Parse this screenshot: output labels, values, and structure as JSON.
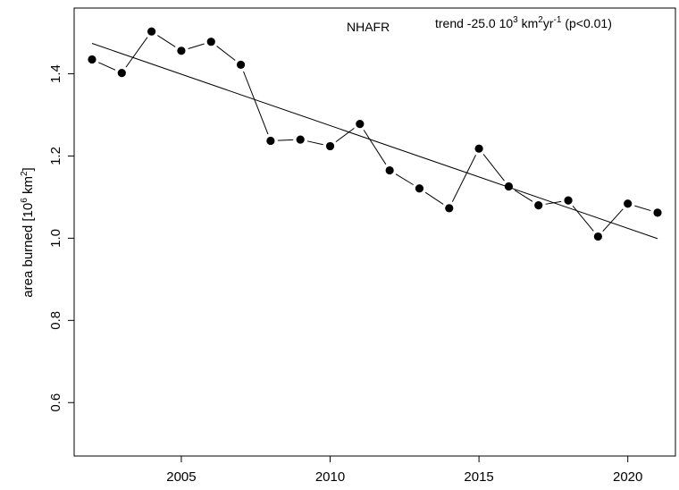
{
  "chart_data": {
    "type": "scatter",
    "title": "",
    "xlabel": "",
    "ylabel": {
      "text": "area burned [10",
      "sup1": "6",
      "text2": " km",
      "sup2": "2",
      "text3": "]"
    },
    "region_label": "NHAFR",
    "trend_label": {
      "p1": "trend -25.0 10",
      "s1": "3",
      "p2": " km",
      "s2": "2",
      "p3": "yr",
      "s3": "-1",
      "p4": " (p<0.01)"
    },
    "xlim": [
      2001.4,
      2021.6
    ],
    "ylim": [
      0.47,
      1.56
    ],
    "x_ticks": [
      2005,
      2010,
      2015,
      2020
    ],
    "x_tick_labels": [
      "2005",
      "2010",
      "2015",
      "2020"
    ],
    "y_ticks": [
      0.6,
      0.8,
      1.0,
      1.2,
      1.4
    ],
    "y_tick_labels": [
      "0.6",
      "0.8",
      "1.0",
      "1.2",
      "1.4"
    ],
    "grid": false,
    "series": [
      {
        "x": [
          2002,
          2003,
          2004,
          2005,
          2006,
          2007,
          2008,
          2009,
          2010,
          2011,
          2012,
          2013,
          2014,
          2015,
          2016,
          2017,
          2018,
          2019,
          2020,
          2021
        ],
        "y": [
          1.435,
          1.402,
          1.503,
          1.456,
          1.478,
          1.422,
          1.237,
          1.24,
          1.224,
          1.278,
          1.165,
          1.121,
          1.073,
          1.218,
          1.126,
          1.08,
          1.092,
          1.004,
          1.084,
          1.062
        ],
        "style": "points-dashed-connector",
        "color": "#000000"
      }
    ],
    "trend_line": {
      "x": [
        2002,
        2021
      ],
      "y": [
        1.474,
        0.999
      ],
      "color": "#000000"
    }
  }
}
